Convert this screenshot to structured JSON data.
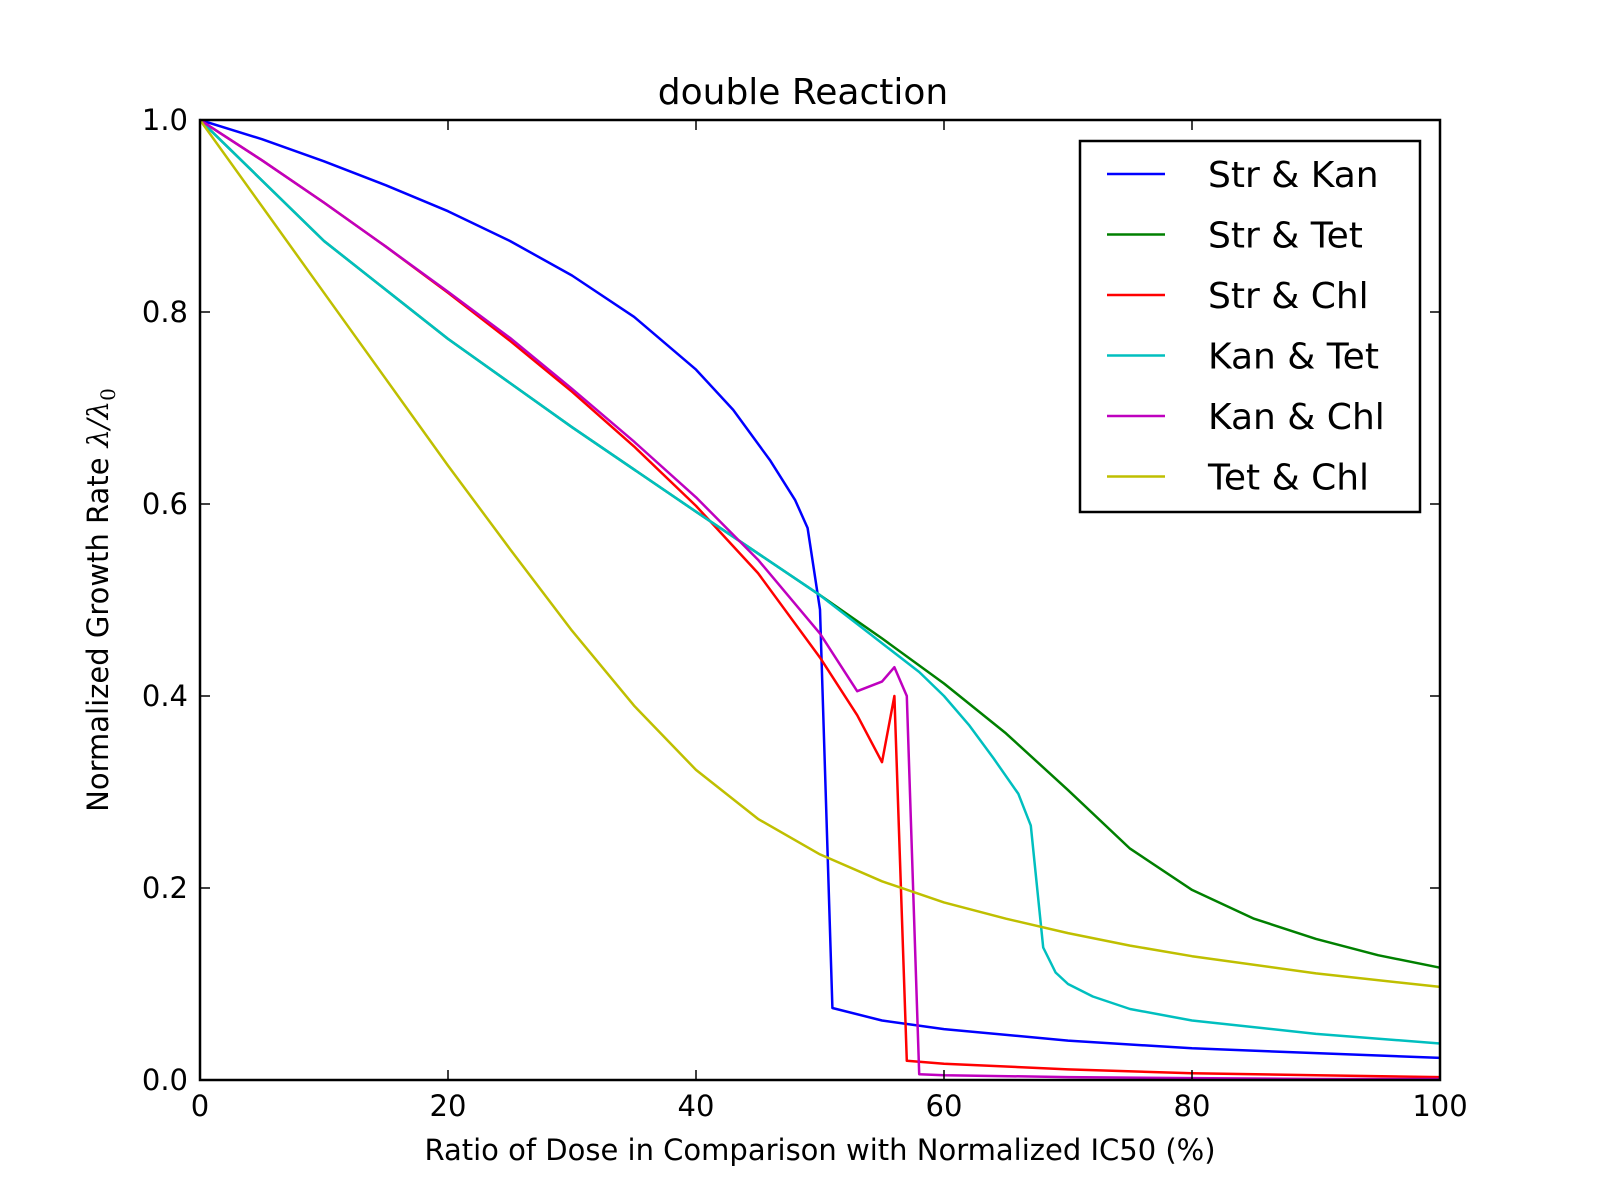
{
  "chart_data": {
    "type": "line",
    "title": "double Reaction",
    "xlabel": "Ratio of Dose in Comparison with Normalized IC50 (%)",
    "ylabel": "Normalized Growth Rate",
    "ylabel_math": "λ/λ",
    "ylabel_math_sub": "0",
    "xlim": [
      0,
      100
    ],
    "ylim": [
      0,
      1.0
    ],
    "xticks": [
      "0",
      "20",
      "40",
      "60",
      "80",
      "100"
    ],
    "yticks": [
      "0.0",
      "0.2",
      "0.4",
      "0.6",
      "0.8",
      "1.0"
    ],
    "grid": false,
    "legend_position": "top-right",
    "series": [
      {
        "name": "Str & Kan",
        "color": "#0000ff",
        "x": [
          0,
          5,
          10,
          15,
          20,
          25,
          30,
          35,
          40,
          43,
          46,
          48,
          49,
          50,
          51,
          55,
          60,
          70,
          80,
          90,
          100
        ],
        "y": [
          1.0,
          0.98,
          0.957,
          0.932,
          0.905,
          0.874,
          0.838,
          0.795,
          0.74,
          0.698,
          0.645,
          0.604,
          0.575,
          0.49,
          0.075,
          0.062,
          0.053,
          0.041,
          0.033,
          0.028,
          0.023
        ]
      },
      {
        "name": "Str & Tet",
        "color": "#008000",
        "x": [
          0,
          10,
          20,
          30,
          40,
          50,
          55,
          60,
          65,
          70,
          75,
          80,
          85,
          90,
          95,
          100
        ],
        "y": [
          1.0,
          0.874,
          0.772,
          0.68,
          0.592,
          0.505,
          0.46,
          0.413,
          0.361,
          0.302,
          0.241,
          0.198,
          0.168,
          0.147,
          0.13,
          0.117
        ]
      },
      {
        "name": "Str & Chl",
        "color": "#ff0000",
        "x": [
          0,
          5,
          10,
          15,
          20,
          25,
          30,
          35,
          40,
          45,
          50,
          53,
          55,
          56,
          57,
          60,
          70,
          80,
          90,
          100
        ],
        "y": [
          1.0,
          0.958,
          0.914,
          0.868,
          0.82,
          0.77,
          0.717,
          0.66,
          0.598,
          0.528,
          0.44,
          0.38,
          0.331,
          0.4,
          0.02,
          0.017,
          0.011,
          0.007,
          0.005,
          0.003
        ]
      },
      {
        "name": "Kan & Tet",
        "color": "#00bfbf",
        "x": [
          0,
          10,
          20,
          30,
          40,
          50,
          55,
          58,
          60,
          62,
          64,
          66,
          67,
          68,
          69,
          70,
          72,
          75,
          80,
          90,
          100
        ],
        "y": [
          1.0,
          0.874,
          0.772,
          0.68,
          0.592,
          0.505,
          0.455,
          0.425,
          0.4,
          0.37,
          0.335,
          0.298,
          0.265,
          0.138,
          0.112,
          0.1,
          0.087,
          0.074,
          0.062,
          0.048,
          0.038
        ]
      },
      {
        "name": "Kan & Chl",
        "color": "#bf00bf",
        "x": [
          0,
          5,
          10,
          15,
          20,
          25,
          30,
          35,
          40,
          45,
          50,
          53,
          55,
          56,
          57,
          58,
          60,
          70,
          80,
          90,
          100
        ],
        "y": [
          1.0,
          0.958,
          0.914,
          0.868,
          0.821,
          0.773,
          0.72,
          0.665,
          0.607,
          0.542,
          0.465,
          0.405,
          0.415,
          0.43,
          0.4,
          0.006,
          0.005,
          0.003,
          0.002,
          0.001,
          0.001
        ]
      },
      {
        "name": "Tet & Chl",
        "color": "#bfbf00",
        "x": [
          0,
          5,
          10,
          15,
          20,
          25,
          30,
          35,
          40,
          45,
          50,
          55,
          60,
          65,
          70,
          75,
          80,
          90,
          100
        ],
        "y": [
          1.0,
          0.91,
          0.82,
          0.73,
          0.64,
          0.553,
          0.468,
          0.39,
          0.323,
          0.272,
          0.235,
          0.207,
          0.185,
          0.168,
          0.153,
          0.14,
          0.129,
          0.111,
          0.097
        ]
      }
    ]
  }
}
